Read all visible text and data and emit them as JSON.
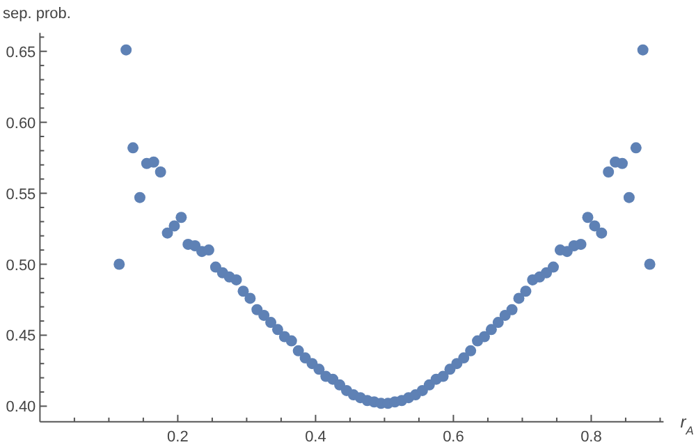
{
  "chart_data": {
    "type": "scatter",
    "xlabel": "r$_{A}$",
    "ylabel": "sep. prob.",
    "x": [
      0.115,
      0.125,
      0.135,
      0.145,
      0.155,
      0.165,
      0.175,
      0.185,
      0.195,
      0.205,
      0.215,
      0.225,
      0.235,
      0.245,
      0.255,
      0.265,
      0.275,
      0.285,
      0.295,
      0.305,
      0.315,
      0.325,
      0.335,
      0.345,
      0.355,
      0.365,
      0.375,
      0.385,
      0.395,
      0.405,
      0.415,
      0.425,
      0.435,
      0.445,
      0.455,
      0.465,
      0.475,
      0.485,
      0.495,
      0.505,
      0.515,
      0.525,
      0.535,
      0.545,
      0.555,
      0.565,
      0.575,
      0.585,
      0.595,
      0.605,
      0.615,
      0.625,
      0.635,
      0.645,
      0.655,
      0.665,
      0.675,
      0.685,
      0.695,
      0.705,
      0.715,
      0.725,
      0.735,
      0.745,
      0.755,
      0.765,
      0.775,
      0.785,
      0.795,
      0.805,
      0.815,
      0.825,
      0.835,
      0.845,
      0.855,
      0.865,
      0.875,
      0.885
    ],
    "series": [
      {
        "color": "#5e81b5",
        "values": [
          0.5,
          0.651,
          0.582,
          0.547,
          0.571,
          0.572,
          0.565,
          0.522,
          0.527,
          0.533,
          0.514,
          0.513,
          0.509,
          0.51,
          0.498,
          0.494,
          0.491,
          0.489,
          0.481,
          0.476,
          0.468,
          0.464,
          0.459,
          0.454,
          0.449,
          0.446,
          0.439,
          0.434,
          0.43,
          0.426,
          0.421,
          0.419,
          0.415,
          0.411,
          0.408,
          0.406,
          0.404,
          0.403,
          0.402,
          0.402,
          0.403,
          0.404,
          0.406,
          0.408,
          0.411,
          0.415,
          0.419,
          0.421,
          0.426,
          0.43,
          0.434,
          0.439,
          0.446,
          0.449,
          0.454,
          0.459,
          0.464,
          0.468,
          0.476,
          0.481,
          0.489,
          0.491,
          0.494,
          0.498,
          0.51,
          0.509,
          0.513,
          0.514,
          0.533,
          0.527,
          0.522,
          0.565,
          0.572,
          0.571,
          0.547,
          0.582,
          0.651,
          0.5
        ]
      }
    ],
    "xlim": [
      0,
      0.905
    ],
    "ylim": [
      0.389,
      0.663
    ],
    "xticks": [
      {
        "value": 0.05,
        "label": null
      },
      {
        "value": 0.1,
        "label": null
      },
      {
        "value": 0.15,
        "label": null
      },
      {
        "value": 0.2,
        "label": "0.2"
      },
      {
        "value": 0.25,
        "label": null
      },
      {
        "value": 0.3,
        "label": null
      },
      {
        "value": 0.35,
        "label": null
      },
      {
        "value": 0.4,
        "label": "0.4"
      },
      {
        "value": 0.45,
        "label": null
      },
      {
        "value": 0.5,
        "label": null
      },
      {
        "value": 0.55,
        "label": null
      },
      {
        "value": 0.6,
        "label": "0.6"
      },
      {
        "value": 0.65,
        "label": null
      },
      {
        "value": 0.7,
        "label": null
      },
      {
        "value": 0.75,
        "label": null
      },
      {
        "value": 0.8,
        "label": "0.8"
      },
      {
        "value": 0.85,
        "label": null
      },
      {
        "value": 0.9,
        "label": null
      }
    ],
    "yticks": [
      {
        "value": 0.4,
        "label": "0.40"
      },
      {
        "value": 0.41,
        "label": null
      },
      {
        "value": 0.42,
        "label": null
      },
      {
        "value": 0.43,
        "label": null
      },
      {
        "value": 0.44,
        "label": null
      },
      {
        "value": 0.45,
        "label": "0.45"
      },
      {
        "value": 0.46,
        "label": null
      },
      {
        "value": 0.47,
        "label": null
      },
      {
        "value": 0.48,
        "label": null
      },
      {
        "value": 0.49,
        "label": null
      },
      {
        "value": 0.5,
        "label": "0.50"
      },
      {
        "value": 0.51,
        "label": null
      },
      {
        "value": 0.52,
        "label": null
      },
      {
        "value": 0.53,
        "label": null
      },
      {
        "value": 0.54,
        "label": null
      },
      {
        "value": 0.55,
        "label": "0.55"
      },
      {
        "value": 0.56,
        "label": null
      },
      {
        "value": 0.57,
        "label": null
      },
      {
        "value": 0.58,
        "label": null
      },
      {
        "value": 0.59,
        "label": null
      },
      {
        "value": 0.6,
        "label": "0.60"
      },
      {
        "value": 0.61,
        "label": null
      },
      {
        "value": 0.62,
        "label": null
      },
      {
        "value": 0.63,
        "label": null
      },
      {
        "value": 0.64,
        "label": null
      },
      {
        "value": 0.65,
        "label": "0.65"
      },
      {
        "value": 0.66,
        "label": null
      }
    ],
    "marker": "circle",
    "grid": false
  }
}
